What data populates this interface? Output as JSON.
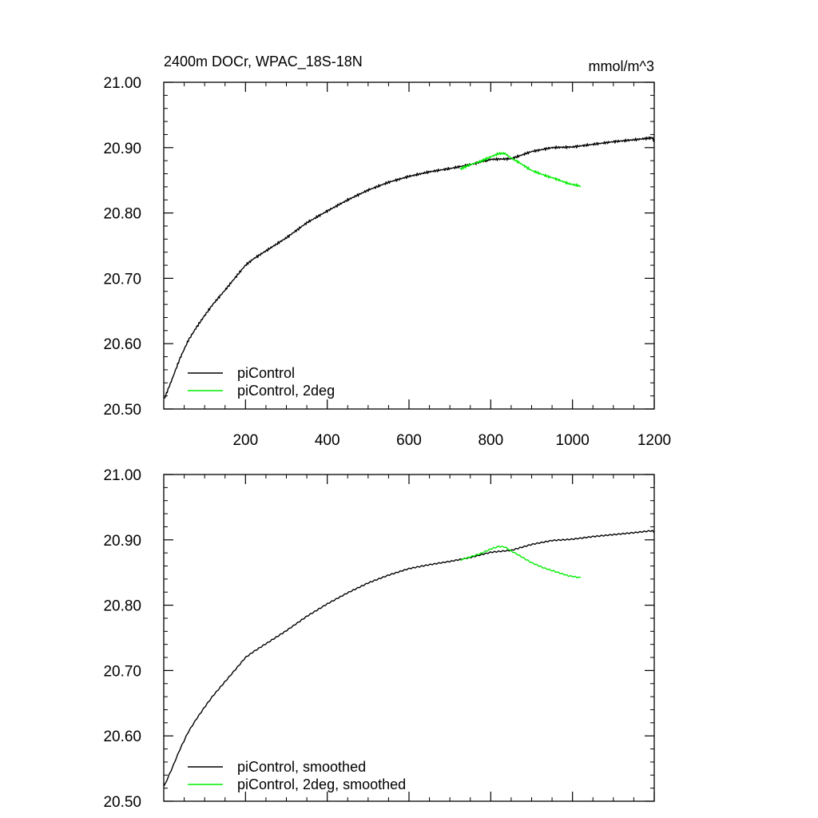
{
  "chart_data": [
    {
      "type": "line",
      "title": "2400m DOCr, WPAC_18S-18N",
      "units": "mmol/m^3",
      "xlim": [
        0,
        1200
      ],
      "ylim": [
        20.5,
        21.0
      ],
      "xticks": [
        200,
        400,
        600,
        800,
        1000,
        1200
      ],
      "xtick_labels": [
        "200",
        "400",
        "600",
        "800",
        "1000",
        "1200"
      ],
      "yticks": [
        20.5,
        20.6,
        20.7,
        20.8,
        20.9,
        21.0
      ],
      "ytick_labels": [
        "20.50",
        "20.60",
        "20.70",
        "20.80",
        "20.90",
        "21.00"
      ],
      "legend_position": "bottom-left",
      "series": [
        {
          "name": "piControl",
          "color": "#000000",
          "x": [
            1,
            20,
            40,
            60,
            80,
            100,
            120,
            150,
            180,
            200,
            220,
            250,
            300,
            350,
            400,
            450,
            500,
            550,
            600,
            650,
            700,
            750,
            800,
            850,
            900,
            950,
            1000,
            1050,
            1100,
            1150,
            1180,
            1195,
            1200
          ],
          "y": [
            20.515,
            20.545,
            20.578,
            20.605,
            20.625,
            20.643,
            20.66,
            20.682,
            20.705,
            20.72,
            20.73,
            20.742,
            20.762,
            20.785,
            20.803,
            20.82,
            20.835,
            20.847,
            20.856,
            20.863,
            20.868,
            20.874,
            20.882,
            20.883,
            20.894,
            20.9,
            20.901,
            20.905,
            20.909,
            20.912,
            20.914,
            20.915,
            20.91
          ]
        },
        {
          "name": "piControl, 2deg",
          "color": "#00ee00",
          "x": [
            725,
            750,
            775,
            800,
            820,
            835,
            850,
            870,
            900,
            930,
            960,
            990,
            1020
          ],
          "y": [
            20.867,
            20.874,
            20.879,
            20.886,
            20.891,
            20.891,
            20.884,
            20.877,
            20.865,
            20.858,
            20.852,
            20.845,
            20.841
          ]
        }
      ]
    },
    {
      "type": "line",
      "title": "",
      "units": "",
      "xlim": [
        0,
        1200
      ],
      "ylim": [
        20.5,
        21.0
      ],
      "xticks": [
        200,
        400,
        600,
        800,
        1000,
        1200
      ],
      "xtick_labels": [],
      "yticks": [
        20.5,
        20.6,
        20.7,
        20.8,
        20.9,
        21.0
      ],
      "ytick_labels": [
        "20.50",
        "20.60",
        "20.70",
        "20.80",
        "20.90",
        "21.00"
      ],
      "legend_position": "bottom-left",
      "series": [
        {
          "name": "piControl, smoothed",
          "color": "#000000",
          "x": [
            1,
            20,
            40,
            60,
            80,
            100,
            120,
            150,
            180,
            200,
            220,
            250,
            300,
            350,
            400,
            450,
            500,
            550,
            600,
            650,
            700,
            750,
            800,
            850,
            900,
            950,
            1000,
            1050,
            1100,
            1150,
            1180,
            1195,
            1200
          ],
          "y": [
            20.523,
            20.55,
            20.58,
            20.606,
            20.626,
            20.644,
            20.661,
            20.683,
            20.705,
            20.72,
            20.729,
            20.741,
            20.761,
            20.783,
            20.802,
            20.819,
            20.834,
            20.846,
            20.856,
            20.862,
            20.867,
            20.873,
            20.881,
            20.884,
            20.893,
            20.899,
            20.901,
            20.905,
            20.908,
            20.911,
            20.913,
            20.914,
            20.911
          ]
        },
        {
          "name": "piControl, 2deg, smoothed",
          "color": "#00ee00",
          "x": [
            725,
            750,
            775,
            800,
            820,
            835,
            850,
            870,
            900,
            930,
            960,
            990,
            1020
          ],
          "y": [
            20.869,
            20.874,
            20.879,
            20.886,
            20.89,
            20.889,
            20.883,
            20.876,
            20.865,
            20.857,
            20.851,
            20.845,
            20.842
          ]
        }
      ]
    }
  ]
}
